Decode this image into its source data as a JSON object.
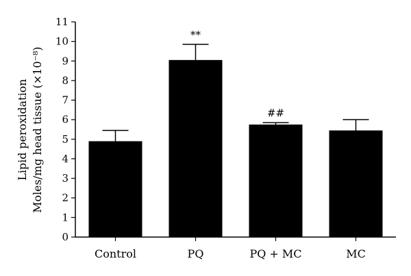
{
  "chart_data": {
    "type": "bar",
    "categories": [
      "Control",
      "PQ",
      "PQ + MC",
      "MC"
    ],
    "values": [
      4.9,
      9.05,
      5.75,
      5.45
    ],
    "errors": [
      0.55,
      0.8,
      0.1,
      0.55
    ],
    "annotations": [
      "",
      "**",
      "##",
      ""
    ],
    "ylabel_lines": [
      "Lipid peroxidation",
      "Moles/mg head tissue (×10⁻⁸)"
    ],
    "ylim": [
      0,
      11
    ],
    "yticks": [
      0,
      1,
      2,
      3,
      4,
      5,
      6,
      7,
      8,
      9,
      10,
      11
    ],
    "grid": false,
    "bar_color": "#000000"
  }
}
